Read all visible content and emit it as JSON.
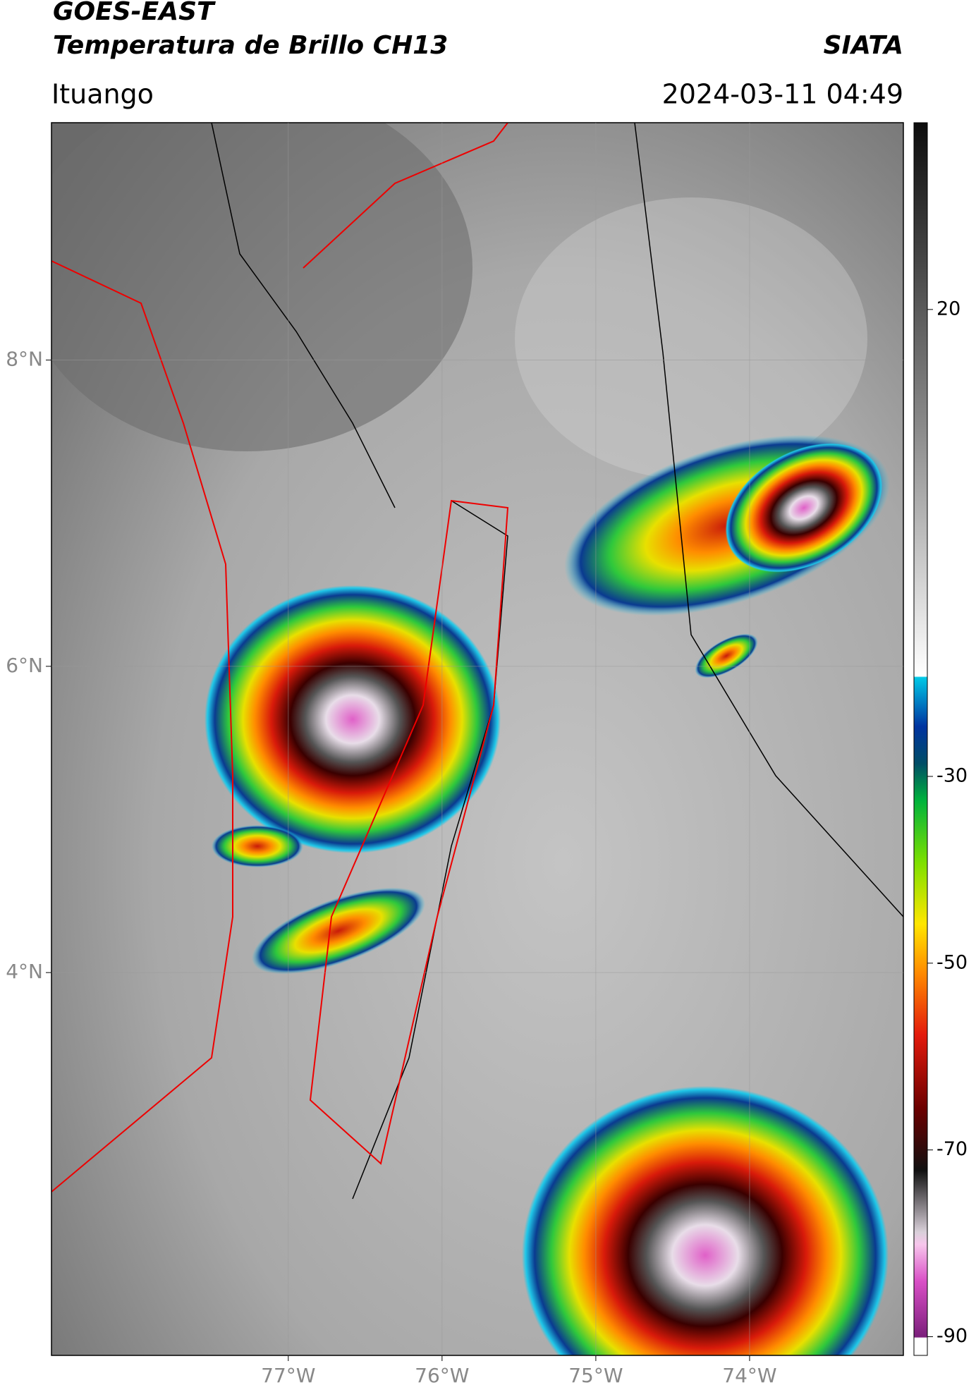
{
  "header": {
    "title": "GOES-EAST",
    "subtitle": "Temperatura de Brillo CH13",
    "source": "SIATA",
    "location": "Ituango",
    "datetime": "2024-03-11 04:49"
  },
  "map": {
    "xlim": [
      -78.54,
      -73.0
    ],
    "ylim": [
      1.5,
      9.55
    ],
    "xticks": [
      {
        "value": -77,
        "label": "77°W"
      },
      {
        "value": -76,
        "label": "76°W"
      },
      {
        "value": -75,
        "label": "75°W"
      },
      {
        "value": -74,
        "label": "74°W"
      }
    ],
    "yticks": [
      {
        "value": 8,
        "label": "8°N"
      },
      {
        "value": 6,
        "label": "6°N"
      },
      {
        "value": 4,
        "label": "4°N"
      }
    ]
  },
  "colorbar": {
    "lim": [
      -92,
      40
    ],
    "ticks": [
      20,
      -30,
      -50,
      -70,
      -90
    ]
  }
}
